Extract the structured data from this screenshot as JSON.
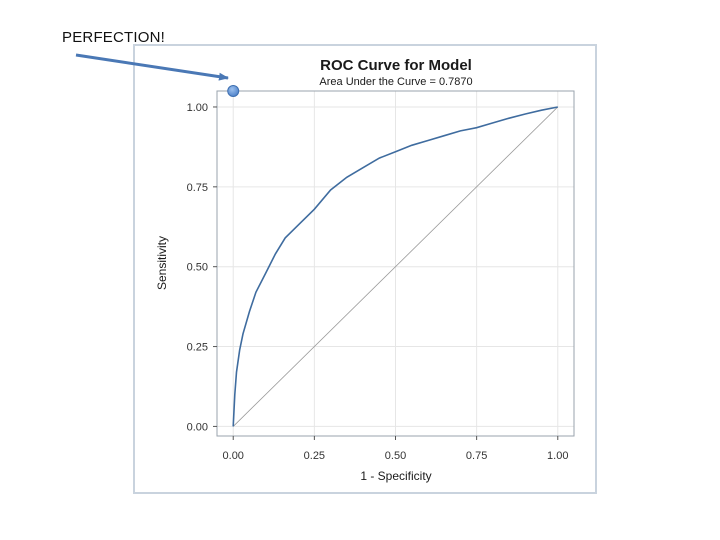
{
  "annotation": {
    "text": "PERFECTION!",
    "arrow_color": "#4a78b5",
    "marker_color": "#5b8fd6"
  },
  "colors": {
    "curve": "#3f6c9f",
    "diagonal": "#9a9a9a",
    "grid": "#e6e6e6",
    "frame": "#9aa3ad",
    "outer_border": "#c9d3de"
  },
  "chart_data": {
    "type": "line",
    "title": "ROC Curve for Model",
    "subtitle": "Area Under the Curve = 0.7870",
    "xlabel": "1 - Specificity",
    "ylabel": "Sensitivity",
    "xlim": [
      -0.05,
      1.05
    ],
    "ylim": [
      -0.03,
      1.05
    ],
    "xticks": [
      "0.00",
      "0.25",
      "0.50",
      "0.75",
      "1.00"
    ],
    "yticks": [
      "0.00",
      "0.25",
      "0.50",
      "0.75",
      "1.00"
    ],
    "grid": true,
    "legend": "none",
    "perfection_point": [
      0,
      1.05
    ],
    "series": [
      {
        "x": [
          0,
          0.005,
          0.01,
          0.02,
          0.03,
          0.05,
          0.07,
          0.1,
          0.13,
          0.16,
          0.2,
          0.25,
          0.3,
          0.35,
          0.4,
          0.45,
          0.5,
          0.55,
          0.6,
          0.65,
          0.7,
          0.75,
          0.8,
          0.85,
          0.9,
          0.95,
          1.0
        ],
        "y": [
          0,
          0.1,
          0.17,
          0.24,
          0.29,
          0.36,
          0.42,
          0.48,
          0.54,
          0.59,
          0.63,
          0.68,
          0.74,
          0.78,
          0.81,
          0.84,
          0.86,
          0.88,
          0.895,
          0.91,
          0.925,
          0.935,
          0.95,
          0.965,
          0.978,
          0.99,
          1.0
        ]
      },
      {
        "x": [
          0,
          1
        ],
        "y": [
          0,
          1
        ]
      }
    ]
  }
}
